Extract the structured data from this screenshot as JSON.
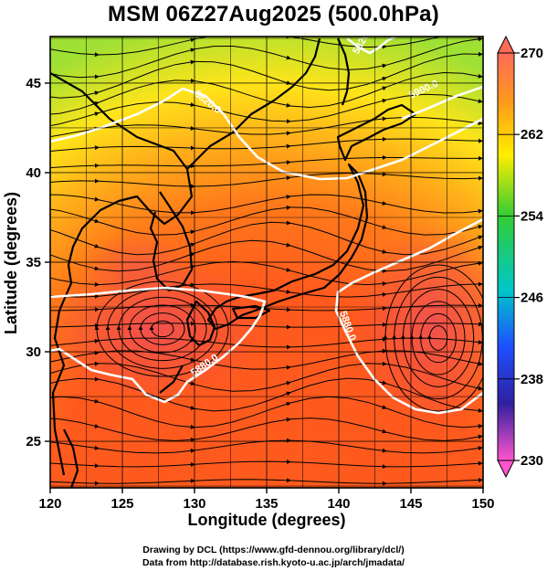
{
  "title": "MSM 06Z27Aug2025 (500.0hPa)",
  "map": {
    "x_axis": {
      "label": "Longitude (degrees)",
      "range": [
        120,
        150
      ],
      "ticks": [
        "120",
        "125",
        "130",
        "135",
        "140",
        "145",
        "150"
      ]
    },
    "y_axis": {
      "label": "Latitude  (degrees)",
      "range": [
        22.4,
        47.6
      ],
      "ticks": [
        "25",
        "30",
        "35",
        "40",
        "45"
      ]
    },
    "grid": true,
    "field_colors": {
      "coldest": "#9fe034",
      "cool": "#ffe41a",
      "mid": "#ff8c1a",
      "warm": "#ff5a1e",
      "warmest": "#f05050",
      "coast": "#000000",
      "contour": "#ffffff"
    },
    "contour_labels": [
      "5820.0",
      "5820.0",
      "5900.0",
      "5880.0",
      "5880.0"
    ]
  },
  "colorbar": {
    "range": [
      230,
      270
    ],
    "labels": [
      "270",
      "262",
      "254",
      "246",
      "238",
      "230"
    ],
    "colors": [
      "#ff6666",
      "#ff9900",
      "#ffff00",
      "#33cc33",
      "#00cccc",
      "#0066ff",
      "#000099",
      "#cc00cc",
      "#ff66cc"
    ]
  },
  "credits": [
    "Drawing by DCL (https://www.gfd-dennou.org/library/dcl/)",
    "Data from http://database.rish.kyoto-u.ac.jp/arch/jmadata/"
  ]
}
